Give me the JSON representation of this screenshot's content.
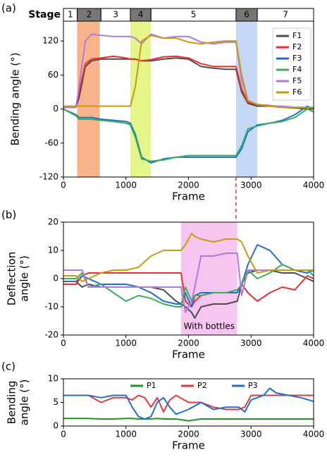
{
  "chart_data": [
    {
      "type": "line",
      "panel_label": "(a)",
      "ylabel": [
        "Bending angle (°)"
      ],
      "xlabel": "Frame",
      "xlim": [
        0,
        4000
      ],
      "xticks": [
        0,
        1000,
        2000,
        3000,
        4000
      ],
      "ylim": [
        -120,
        155
      ],
      "yticks": [
        -120,
        -60,
        0,
        60,
        120
      ],
      "stages": {
        "label": "Stage",
        "names": [
          "1",
          "2",
          "3",
          "4",
          "5",
          "6",
          "7"
        ],
        "edges": [
          0,
          220,
          600,
          1070,
          1400,
          2760,
          3100,
          4000
        ],
        "shaded": [
          false,
          true,
          false,
          true,
          false,
          true,
          false
        ],
        "color": "#777777"
      },
      "highlights": [
        {
          "x": [
            220,
            580
          ],
          "color": "#f7b48a"
        },
        {
          "x": [
            1070,
            1400
          ],
          "color": "#e6f58a"
        },
        {
          "x": [
            2760,
            3100
          ],
          "color": "#c4d8f5"
        }
      ],
      "marker_x": 2760,
      "marker_color": "#e23a3a",
      "legend": "upper right",
      "x": [
        0,
        200,
        250,
        350,
        450,
        600,
        800,
        1000,
        1070,
        1150,
        1250,
        1400,
        1600,
        1800,
        2000,
        2200,
        2400,
        2600,
        2760,
        2850,
        2950,
        3100,
        3300,
        3500,
        3700,
        3900,
        4000
      ],
      "series": [
        {
          "name": "F1",
          "color": "#4d4d4d",
          "values": [
            3,
            3,
            20,
            75,
            85,
            88,
            88,
            88,
            88,
            88,
            85,
            85,
            88,
            90,
            88,
            75,
            72,
            70,
            70,
            30,
            10,
            5,
            5,
            3,
            2,
            0,
            0
          ]
        },
        {
          "name": "F2",
          "color": "#e8312f",
          "values": [
            5,
            5,
            30,
            80,
            88,
            90,
            93,
            90,
            88,
            88,
            85,
            87,
            92,
            93,
            90,
            80,
            75,
            75,
            75,
            35,
            12,
            8,
            6,
            4,
            3,
            3,
            2
          ]
        },
        {
          "name": "F3",
          "color": "#1f6fd1",
          "values": [
            0,
            -10,
            -15,
            -15,
            -15,
            -18,
            -20,
            -22,
            -25,
            -45,
            -85,
            -95,
            -88,
            -85,
            -85,
            -85,
            -85,
            -85,
            -85,
            -70,
            -40,
            -28,
            -25,
            -20,
            -10,
            5,
            0
          ]
        },
        {
          "name": "F4",
          "color": "#3cae5a",
          "values": [
            0,
            -12,
            -18,
            -18,
            -18,
            -20,
            -22,
            -25,
            -28,
            -50,
            -88,
            -92,
            -90,
            -85,
            -82,
            -82,
            -82,
            -82,
            -82,
            -65,
            -35,
            -30,
            -25,
            -22,
            -15,
            0,
            -5
          ]
        },
        {
          "name": "F5",
          "color": "#b07ae0",
          "values": [
            3,
            3,
            40,
            120,
            132,
            130,
            128,
            128,
            128,
            125,
            115,
            132,
            125,
            128,
            128,
            118,
            115,
            118,
            118,
            50,
            15,
            8,
            5,
            5,
            3,
            3,
            3
          ]
        },
        {
          "name": "F6",
          "color": "#c99a12",
          "values": [
            5,
            5,
            5,
            5,
            5,
            5,
            5,
            5,
            5,
            40,
            120,
            130,
            125,
            125,
            118,
            115,
            118,
            120,
            120,
            60,
            15,
            8,
            5,
            3,
            3,
            3,
            3
          ]
        }
      ]
    },
    {
      "type": "line",
      "panel_label": "(b)",
      "ylabel": [
        "Deflection",
        "angle (°)"
      ],
      "xlabel": "Frame",
      "xlim": [
        0,
        4000
      ],
      "xticks": [
        0,
        1000,
        2000,
        3000,
        4000
      ],
      "ylim": [
        -20,
        20
      ],
      "yticks": [
        -20,
        -10,
        0,
        10,
        20
      ],
      "highlights": [
        {
          "x": [
            1880,
            2780
          ],
          "color": "#f7c6f0",
          "label": "With bottles"
        }
      ],
      "x": [
        0,
        200,
        300,
        400,
        600,
        800,
        1000,
        1200,
        1400,
        1600,
        1800,
        1880,
        1950,
        2050,
        2100,
        2200,
        2400,
        2600,
        2780,
        2850,
        2950,
        3100,
        3300,
        3500,
        3700,
        3900,
        4000
      ],
      "series": [
        {
          "color": "#4d4d4d",
          "values": [
            -1,
            -1,
            -3,
            -2,
            -3,
            -3,
            -3,
            -3,
            -3,
            -4,
            -8,
            -9,
            -10,
            -12,
            -14,
            -10,
            -9,
            -9,
            -8,
            -2,
            2,
            3,
            3,
            2,
            2,
            0,
            -1
          ]
        },
        {
          "color": "#e8312f",
          "values": [
            -2,
            -2,
            1,
            2,
            2,
            2,
            2,
            2,
            2,
            2,
            2,
            2,
            -8,
            -10,
            -8,
            -6,
            -5,
            -5,
            -5,
            -2,
            -5,
            -8,
            -5,
            -3,
            -4,
            1,
            0
          ]
        },
        {
          "color": "#1f6fd1",
          "values": [
            -1,
            -1,
            1,
            0,
            -2,
            -2,
            -2,
            -3,
            -5,
            -8,
            -9,
            -9,
            -5,
            -10,
            -6,
            -5,
            -5,
            -5,
            -5,
            -2,
            5,
            12,
            10,
            5,
            3,
            2,
            3
          ]
        },
        {
          "color": "#3cae5a",
          "values": [
            0,
            0,
            2,
            -3,
            -2,
            -5,
            -8,
            -6,
            -7,
            -9,
            -10,
            -10,
            -3,
            -8,
            -6,
            -6,
            -5,
            -5,
            -4,
            -2,
            3,
            0,
            2,
            5,
            3,
            3,
            1
          ]
        },
        {
          "color": "#b07ae0",
          "values": [
            3,
            3,
            3,
            -3,
            -3,
            -3,
            -3,
            -3,
            -3,
            -3,
            -3,
            -3,
            -12,
            -8,
            -3,
            8,
            8,
            9,
            9,
            -6,
            3,
            3,
            3,
            3,
            3,
            3,
            3
          ]
        },
        {
          "color": "#c99a12",
          "values": [
            1,
            1,
            -1,
            0,
            2,
            3,
            3,
            4,
            8,
            10,
            10,
            10,
            12,
            16,
            15,
            14,
            13,
            14,
            14,
            13,
            8,
            2,
            3,
            3,
            3,
            3,
            3
          ]
        }
      ]
    },
    {
      "type": "line",
      "panel_label": "(c)",
      "ylabel": [
        "Bending",
        "angle (°)"
      ],
      "xlabel": "Frame",
      "xlim": [
        0,
        4000
      ],
      "xticks": [
        0,
        1000,
        2000,
        3000,
        4000
      ],
      "ylim": [
        0,
        10
      ],
      "yticks": [
        0,
        5,
        10
      ],
      "legend": "upper center",
      "x": [
        0,
        400,
        600,
        800,
        1000,
        1100,
        1200,
        1300,
        1400,
        1500,
        1600,
        1700,
        1800,
        2000,
        2200,
        2400,
        2600,
        2800,
        2900,
        3000,
        3200,
        3300,
        3400,
        3600,
        3800,
        4000
      ],
      "series": [
        {
          "name": "P1",
          "color": "#1a9a1a",
          "values": [
            1.6,
            1.6,
            1.5,
            1.5,
            1.6,
            1.6,
            1.5,
            1.5,
            1.5,
            1.6,
            1.5,
            1.5,
            1.5,
            1.1,
            1.5,
            1.5,
            1.5,
            1.5,
            1.5,
            1.5,
            1.5,
            1.5,
            1.5,
            1.5,
            1.5,
            1.5
          ]
        },
        {
          "name": "P2",
          "color": "#e23a3a",
          "values": [
            6.5,
            6.5,
            5,
            6,
            6,
            5.5,
            6.5,
            6,
            4,
            6,
            3,
            5.5,
            6.5,
            5,
            5,
            4,
            3.5,
            3.5,
            4,
            6.5,
            6.5,
            6.5,
            6.5,
            6.5,
            6.5,
            6.5
          ]
        },
        {
          "name": "P3",
          "color": "#1f6fd1",
          "values": [
            6.5,
            6.5,
            6,
            6.5,
            6.5,
            4,
            2,
            1.5,
            2,
            5,
            6,
            4,
            2.5,
            3.5,
            5,
            3.5,
            4,
            4,
            3,
            5.5,
            6.5,
            8,
            7,
            6.5,
            6,
            5.2
          ]
        }
      ]
    }
  ]
}
